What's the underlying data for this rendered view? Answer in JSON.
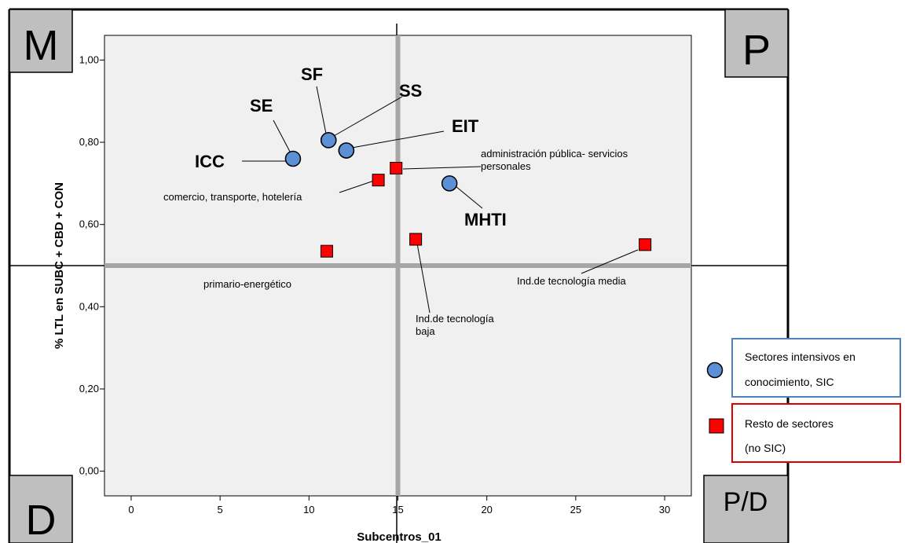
{
  "corners": {
    "tl": "M",
    "tr": "P",
    "bl": "D",
    "br": "P/D"
  },
  "chart_data": {
    "type": "scatter",
    "xlabel": "Subcentros_01",
    "ylabel": "% LTL en SUBC + CBD + CON",
    "xlim": [
      -1.5,
      31.5
    ],
    "ylim": [
      -0.06,
      1.06
    ],
    "x_ticks": [
      0,
      5,
      10,
      15,
      20,
      25,
      30
    ],
    "x_tick_labels": [
      "0",
      "5",
      "10",
      "15",
      "20",
      "25",
      "30"
    ],
    "y_ticks": [
      0.0,
      0.2,
      0.4,
      0.6,
      0.8,
      1.0
    ],
    "y_tick_labels": [
      "0,00",
      "0,20",
      "0,40",
      "0,60",
      "0,80",
      "1,00"
    ],
    "reference_lines": {
      "x": 15,
      "y": 0.5
    },
    "series": [
      {
        "name": "Sectores intensivos en conocimiento, SIC",
        "marker": "circle",
        "color": "#5b8fd6",
        "points": [
          {
            "label": "ICC",
            "x": 9.1,
            "y": 0.76
          },
          {
            "label": "SE",
            "x": 11.1,
            "y": 0.805
          },
          {
            "label": "SF",
            "x": 11.1,
            "y": 0.805
          },
          {
            "label": "SS",
            "x": 12.1,
            "y": 0.78
          },
          {
            "label": "EIT",
            "x": 12.1,
            "y": 0.78
          },
          {
            "label": "MHTI",
            "x": 17.9,
            "y": 0.7
          }
        ]
      },
      {
        "name": "Resto de sectores (no SIC)",
        "marker": "square",
        "color": "#ff0000",
        "points": [
          {
            "label": "comercio, transporte, hotelería",
            "x": 13.9,
            "y": 0.708
          },
          {
            "label": "administración pública- servicios personales",
            "x": 14.9,
            "y": 0.737
          },
          {
            "label": "primario-energético",
            "x": 11.0,
            "y": 0.535
          },
          {
            "label": "Ind.de tecnología baja",
            "x": 16.0,
            "y": 0.564
          },
          {
            "label": "Ind.de tecnología media",
            "x": 28.9,
            "y": 0.551
          }
        ]
      }
    ],
    "legend": {
      "placement": "right",
      "items": [
        {
          "line1": "Sectores intensivos en",
          "line2": "conocimiento, SIC",
          "marker": "circle",
          "box_color": "#4f81bd"
        },
        {
          "line1": "Resto de sectores",
          "line2": "(no SIC)",
          "marker": "square",
          "box_color": "#e00000"
        }
      ]
    }
  }
}
